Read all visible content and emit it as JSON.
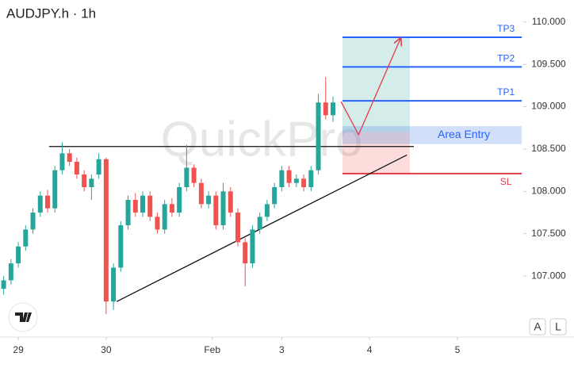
{
  "chart_data": {
    "type": "candlestick",
    "title": "AUDJPY.h · 1h",
    "watermark": "QuickPro",
    "x": [
      -4,
      -2,
      0,
      2,
      4,
      6,
      8,
      10,
      12,
      14,
      16,
      18,
      20,
      22,
      24,
      26,
      28,
      30,
      32,
      34,
      36,
      38,
      40,
      42,
      44,
      46,
      48,
      50,
      52,
      54,
      56,
      58,
      60,
      62,
      64,
      66,
      68,
      70,
      72,
      74,
      76,
      78,
      80,
      82,
      84,
      86
    ],
    "open": [
      106.85,
      106.95,
      107.15,
      107.35,
      107.55,
      107.75,
      107.95,
      107.8,
      108.25,
      108.45,
      108.35,
      108.2,
      108.05,
      108.2,
      108.38,
      106.7,
      107.1,
      107.6,
      107.9,
      107.75,
      107.95,
      107.7,
      107.55,
      107.85,
      107.75,
      108.05,
      108.28,
      108.1,
      107.85,
      107.95,
      107.6,
      108.0,
      107.75,
      107.4,
      107.15,
      107.55,
      107.7,
      107.85,
      108.05,
      108.25,
      108.1,
      108.15,
      108.05,
      108.25,
      109.05,
      108.9
    ],
    "high": [
      107.0,
      107.2,
      107.4,
      107.6,
      107.8,
      108.0,
      108.02,
      108.3,
      108.58,
      108.5,
      108.4,
      108.25,
      108.2,
      108.45,
      108.4,
      107.15,
      107.65,
      107.95,
      107.98,
      108.0,
      108.0,
      107.75,
      107.9,
      107.92,
      108.1,
      108.55,
      108.32,
      108.15,
      108.0,
      108.0,
      108.1,
      108.05,
      107.8,
      107.45,
      107.6,
      107.75,
      107.9,
      108.1,
      108.3,
      108.3,
      108.2,
      108.2,
      108.3,
      109.15,
      109.35,
      109.12
    ],
    "low": [
      106.78,
      106.9,
      107.1,
      107.3,
      107.5,
      107.7,
      107.75,
      107.75,
      108.2,
      108.3,
      108.15,
      108.0,
      107.9,
      108.15,
      106.55,
      106.6,
      107.05,
      107.55,
      107.7,
      107.7,
      107.65,
      107.5,
      107.5,
      107.7,
      107.7,
      108.0,
      108.05,
      107.8,
      107.8,
      107.55,
      107.55,
      107.7,
      107.35,
      106.88,
      107.1,
      107.5,
      107.65,
      107.8,
      108.0,
      108.05,
      108.05,
      108.0,
      108.0,
      108.2,
      108.85,
      108.82
    ],
    "close": [
      106.95,
      107.15,
      107.35,
      107.55,
      107.75,
      107.95,
      107.8,
      108.25,
      108.45,
      108.35,
      108.2,
      108.05,
      108.15,
      108.38,
      106.7,
      107.1,
      107.6,
      107.9,
      107.75,
      107.95,
      107.7,
      107.55,
      107.85,
      107.75,
      108.05,
      108.28,
      108.1,
      107.85,
      107.95,
      107.6,
      108.0,
      107.75,
      107.4,
      107.15,
      107.55,
      107.7,
      107.85,
      108.05,
      108.25,
      108.1,
      108.15,
      108.05,
      108.25,
      109.05,
      108.9,
      109.05
    ],
    "up_color": "#26a69a",
    "down_color": "#ef5350",
    "xlim": [
      -5,
      138
    ],
    "xticks": [
      {
        "value": 0,
        "label": "29"
      },
      {
        "value": 24,
        "label": "30"
      },
      {
        "value": 53,
        "label": "Feb"
      },
      {
        "value": 72,
        "label": "3"
      },
      {
        "value": 96,
        "label": "4"
      },
      {
        "value": 120,
        "label": "5"
      }
    ],
    "ylim": [
      106.28,
      110.26
    ],
    "yticks": [
      {
        "value": 107,
        "label": "107.000"
      },
      {
        "value": 107.5,
        "label": "107.500"
      },
      {
        "value": 108,
        "label": "108.000"
      },
      {
        "value": 108.5,
        "label": "108.500"
      },
      {
        "value": 109,
        "label": "109.000"
      },
      {
        "value": 109.5,
        "label": "109.500"
      },
      {
        "value": 110,
        "label": "110.000"
      }
    ],
    "levels": [
      {
        "name": "TP3",
        "value": 109.82,
        "color": "#2962ff"
      },
      {
        "name": "TP2",
        "value": 109.47,
        "color": "#2962ff"
      },
      {
        "name": "TP1",
        "value": 109.07,
        "color": "#2962ff"
      },
      {
        "name": "SL",
        "value": 108.21,
        "color": "#e53945"
      }
    ],
    "level_x": [
      88.6,
      137.6
    ],
    "entry_zone": {
      "label": "Area Entry",
      "low": 108.56,
      "high": 108.77,
      "x": [
        88.6,
        137.6
      ],
      "color": "#2962ff"
    },
    "target_zone": {
      "low": 108.7,
      "high": 109.82,
      "x": [
        88.6,
        107
      ]
    },
    "stop_zone": {
      "low": 108.21,
      "high": 108.7,
      "x": [
        88.6,
        107
      ]
    },
    "resistance": {
      "value": 108.53,
      "x": [
        8.4,
        108.1
      ]
    },
    "trendline": {
      "x": [
        26.9,
        106.2
      ],
      "y": [
        106.7,
        108.43
      ]
    },
    "arrow": {
      "x": [
        88.2,
        93,
        104.4
      ],
      "y": [
        109.06,
        108.67,
        109.8
      ],
      "color": "#e53945"
    },
    "buttons": [
      "A",
      "L"
    ]
  }
}
